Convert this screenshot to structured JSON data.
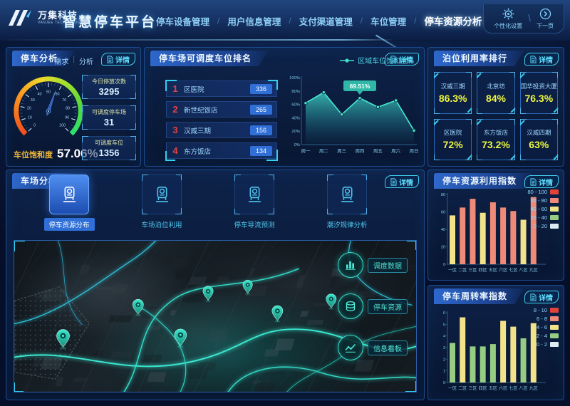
{
  "ui": {
    "detail": "详情"
  },
  "header": {
    "logo_text": "万集科技",
    "logo_sub": "VANJEE TECHNOLOGY",
    "title": "智慧停车平台",
    "nav": [
      {
        "label": "停车设备管理",
        "active": false
      },
      {
        "label": "用户信息管理",
        "active": false
      },
      {
        "label": "支付渠道管理",
        "active": false
      },
      {
        "label": "车位管理",
        "active": false
      },
      {
        "label": "停车资源分析",
        "active": true
      }
    ],
    "settings_label": "个性化设置",
    "next_label": "下一页"
  },
  "panels": {
    "parking_analysis": {
      "title": "停车分析",
      "mini_tabs": [
        "需求",
        "分析"
      ],
      "stats": [
        {
          "label": "今日停放次数",
          "value": "3295"
        },
        {
          "label": "可调度停车场",
          "value": "31"
        },
        {
          "label": "可调度车位",
          "value": "1356"
        }
      ]
    },
    "dispatch_ranking": {
      "title": "停车场可调度车位排名",
      "items": [
        {
          "rank": "1",
          "name": "区医院",
          "value": "336"
        },
        {
          "rank": "2",
          "name": "新世纪饭店",
          "value": "265"
        },
        {
          "rank": "3",
          "name": "汉威三期",
          "value": "156"
        },
        {
          "rank": "4",
          "name": "东方饭店",
          "value": "134"
        }
      ]
    },
    "berth_ranking": {
      "title": "泊位利用率排行",
      "items": [
        {
          "name": "汉威三期",
          "value": "86.3%"
        },
        {
          "name": "北京坊",
          "value": "84%"
        },
        {
          "name": "国华投资大厦",
          "value": "76.3%"
        },
        {
          "name": "区医院",
          "value": "72%"
        },
        {
          "name": "东方饭店",
          "value": "73.2%"
        },
        {
          "name": "汉威四期",
          "value": "63%"
        }
      ]
    },
    "lot_analysis": {
      "title": "车场分析",
      "tabs": [
        {
          "label": "停车资源分布",
          "active": true
        },
        {
          "label": "车场泊位利用",
          "active": false
        },
        {
          "label": "停车导流预测",
          "active": false
        },
        {
          "label": "潮汐规律分析",
          "active": false
        }
      ],
      "map_buttons": [
        {
          "label": "调度数据",
          "icon": "bar-chart-icon"
        },
        {
          "label": "停车资源",
          "icon": "database-icon"
        },
        {
          "label": "信息看板",
          "icon": "line-chart-icon"
        }
      ]
    }
  },
  "chart_data": [
    {
      "type": "gauge",
      "label": "车位饱和度",
      "value": 57.06,
      "display": "57.06%",
      "min": 0,
      "max": 100,
      "tick_step": 10
    },
    {
      "type": "area",
      "legend": "区域车位饱和度%",
      "categories": [
        "周一",
        "周二",
        "周三",
        "周四",
        "周五",
        "周六",
        "周日"
      ],
      "values": [
        62,
        78,
        45,
        69.51,
        56,
        66,
        21
      ],
      "ylim": [
        0,
        100
      ],
      "yticks": [
        "0%",
        "20%",
        "40%",
        "60%",
        "80%",
        "100%"
      ],
      "tooltip": {
        "index": 3,
        "text": "69.51%"
      }
    },
    {
      "type": "bar",
      "title": "停车资源利用指数",
      "categories": [
        "一区",
        "二区",
        "三区",
        "四区",
        "五区",
        "六区",
        "七区",
        "八区",
        "九区"
      ],
      "values": [
        56,
        65,
        75,
        59,
        71,
        65,
        61,
        51,
        77
      ],
      "ylim": [
        0,
        80
      ],
      "yticks": [
        0,
        20,
        40,
        60,
        80
      ],
      "legend": [
        {
          "label": "80 - 100",
          "color": "#e04438"
        },
        {
          "label": "60 - 80",
          "color": "#ef8a78"
        },
        {
          "label": "40 - 60",
          "color": "#f2e38b"
        },
        {
          "label": "20 - 40",
          "color": "#97cc83"
        },
        {
          "label": "0 - 20",
          "color": "#dcecf2"
        }
      ],
      "buckets": [
        {
          "min": 80,
          "color": "#e04438"
        },
        {
          "min": 60,
          "color": "#ef8a78"
        },
        {
          "min": 40,
          "color": "#f2e38b"
        },
        {
          "min": 20,
          "color": "#97cc83"
        },
        {
          "min": 0,
          "color": "#dcecf2"
        }
      ]
    },
    {
      "type": "bar",
      "title": "停车周转率指数",
      "categories": [
        "一区",
        "二区",
        "三区",
        "四区",
        "五区",
        "六区",
        "七区",
        "八区",
        "九区"
      ],
      "values": [
        3.4,
        5.6,
        3.1,
        3.1,
        3.3,
        5.3,
        4.8,
        3.8,
        5.1
      ],
      "ylim": [
        0,
        6
      ],
      "yticks": [
        0,
        1,
        2,
        3,
        4,
        5,
        6
      ],
      "legend": [
        {
          "label": "8 - 10",
          "color": "#e04438"
        },
        {
          "label": "6 - 8",
          "color": "#ef8a78"
        },
        {
          "label": "4 - 6",
          "color": "#f2e38b"
        },
        {
          "label": "2 - 4",
          "color": "#97cc83"
        },
        {
          "label": "0 - 2",
          "color": "#dcecf2"
        }
      ],
      "buckets": [
        {
          "min": 8,
          "color": "#e04438"
        },
        {
          "min": 6,
          "color": "#ef8a78"
        },
        {
          "min": 4,
          "color": "#f2e38b"
        },
        {
          "min": 2,
          "color": "#97cc83"
        },
        {
          "min": 0,
          "color": "#dcecf2"
        }
      ]
    }
  ]
}
